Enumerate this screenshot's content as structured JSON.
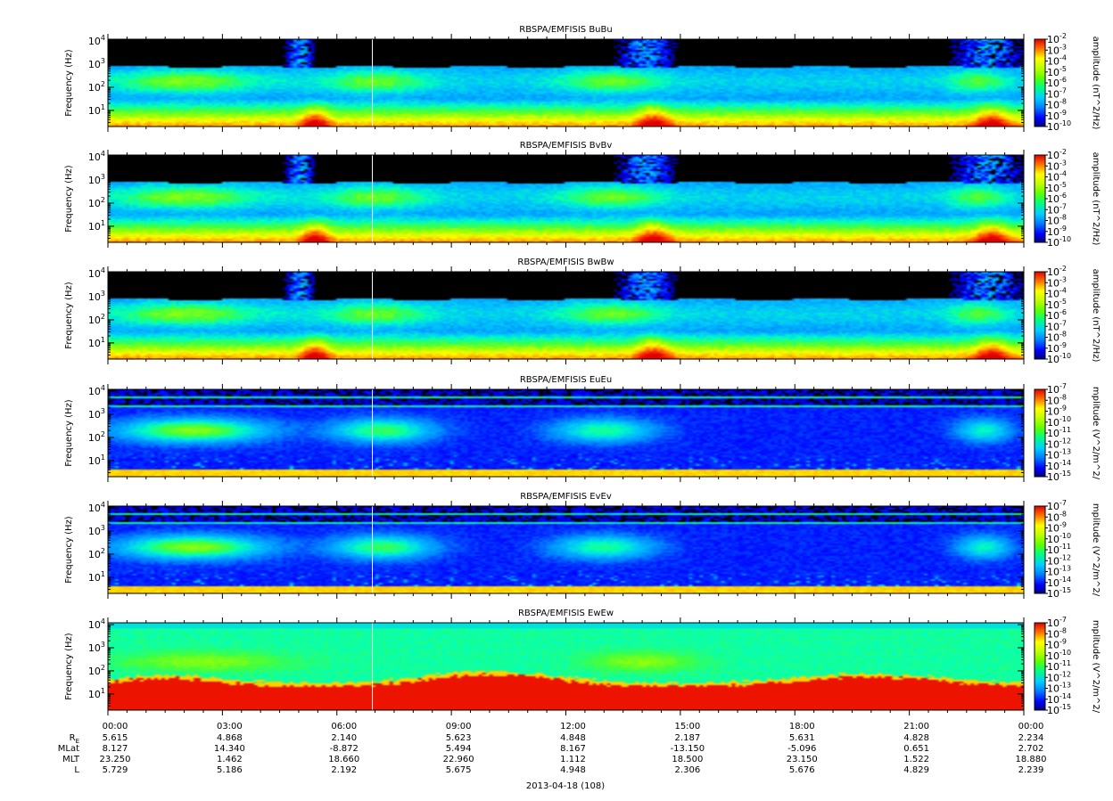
{
  "chart_data": [
    {
      "type": "heatmap",
      "title": "RBSPA/EMFISIS  BuBu",
      "ylabel": "Frequency (Hz)",
      "yscale": "log",
      "ylim": [
        2,
        12000
      ],
      "yticks": [
        {
          "label": "10",
          "sup": "1"
        },
        {
          "label": "10",
          "sup": "2"
        },
        {
          "label": "10",
          "sup": "3"
        },
        {
          "label": "10",
          "sup": "4"
        }
      ],
      "colorbar": {
        "label": "amplitude (nT^2/Hz)",
        "ticks": [
          {
            "label": "10",
            "sup": "-2"
          },
          {
            "label": "10",
            "sup": "-3"
          },
          {
            "label": "10",
            "sup": "-4"
          },
          {
            "label": "10",
            "sup": "-5"
          },
          {
            "label": "10",
            "sup": "-6"
          },
          {
            "label": "10",
            "sup": "-7"
          },
          {
            "label": "10",
            "sup": "-8"
          },
          {
            "label": "10",
            "sup": "-9"
          },
          {
            "label": "10",
            "sup": "-10"
          }
        ]
      },
      "variant": "b"
    },
    {
      "type": "heatmap",
      "title": "RBSPA/EMFISIS  BvBv",
      "ylabel": "Frequency (Hz)",
      "yscale": "log",
      "ylim": [
        2,
        12000
      ],
      "yticks": [
        {
          "label": "10",
          "sup": "1"
        },
        {
          "label": "10",
          "sup": "2"
        },
        {
          "label": "10",
          "sup": "3"
        },
        {
          "label": "10",
          "sup": "4"
        }
      ],
      "colorbar": {
        "label": "amplitude (nT^2/Hz)",
        "ticks": [
          {
            "label": "10",
            "sup": "-2"
          },
          {
            "label": "10",
            "sup": "-3"
          },
          {
            "label": "10",
            "sup": "-4"
          },
          {
            "label": "10",
            "sup": "-5"
          },
          {
            "label": "10",
            "sup": "-6"
          },
          {
            "label": "10",
            "sup": "-7"
          },
          {
            "label": "10",
            "sup": "-8"
          },
          {
            "label": "10",
            "sup": "-9"
          },
          {
            "label": "10",
            "sup": "-10"
          }
        ]
      },
      "variant": "b"
    },
    {
      "type": "heatmap",
      "title": "RBSPA/EMFISIS  BwBw",
      "ylabel": "Frequency (Hz)",
      "yscale": "log",
      "ylim": [
        2,
        12000
      ],
      "yticks": [
        {
          "label": "10",
          "sup": "1"
        },
        {
          "label": "10",
          "sup": "2"
        },
        {
          "label": "10",
          "sup": "3"
        },
        {
          "label": "10",
          "sup": "4"
        }
      ],
      "colorbar": {
        "label": "amplitude (nT^2/Hz)",
        "ticks": [
          {
            "label": "10",
            "sup": "-2"
          },
          {
            "label": "10",
            "sup": "-3"
          },
          {
            "label": "10",
            "sup": "-4"
          },
          {
            "label": "10",
            "sup": "-5"
          },
          {
            "label": "10",
            "sup": "-6"
          },
          {
            "label": "10",
            "sup": "-7"
          },
          {
            "label": "10",
            "sup": "-8"
          },
          {
            "label": "10",
            "sup": "-9"
          },
          {
            "label": "10",
            "sup": "-10"
          }
        ]
      },
      "variant": "b"
    },
    {
      "type": "heatmap",
      "title": "RBSPA/EMFISIS  EuEu",
      "ylabel": "Frequency (Hz)",
      "yscale": "log",
      "ylim": [
        2,
        12000
      ],
      "yticks": [
        {
          "label": "10",
          "sup": "1"
        },
        {
          "label": "10",
          "sup": "2"
        },
        {
          "label": "10",
          "sup": "3"
        },
        {
          "label": "10",
          "sup": "4"
        }
      ],
      "colorbar": {
        "label": "mplitude (V^2/m^2/",
        "ticks": [
          {
            "label": "10",
            "sup": "-7"
          },
          {
            "label": "10",
            "sup": "-8"
          },
          {
            "label": "10",
            "sup": "-9"
          },
          {
            "label": "10",
            "sup": "-10"
          },
          {
            "label": "10",
            "sup": "-11"
          },
          {
            "label": "10",
            "sup": "-12"
          },
          {
            "label": "10",
            "sup": "-13"
          },
          {
            "label": "10",
            "sup": "-14"
          },
          {
            "label": "10",
            "sup": "-15"
          }
        ]
      },
      "variant": "e"
    },
    {
      "type": "heatmap",
      "title": "RBSPA/EMFISIS  EvEv",
      "ylabel": "Frequency (Hz)",
      "yscale": "log",
      "ylim": [
        2,
        12000
      ],
      "yticks": [
        {
          "label": "10",
          "sup": "1"
        },
        {
          "label": "10",
          "sup": "2"
        },
        {
          "label": "10",
          "sup": "3"
        },
        {
          "label": "10",
          "sup": "4"
        }
      ],
      "colorbar": {
        "label": "mplitude (V^2/m^2/",
        "ticks": [
          {
            "label": "10",
            "sup": "-7"
          },
          {
            "label": "10",
            "sup": "-8"
          },
          {
            "label": "10",
            "sup": "-9"
          },
          {
            "label": "10",
            "sup": "-10"
          },
          {
            "label": "10",
            "sup": "-11"
          },
          {
            "label": "10",
            "sup": "-12"
          },
          {
            "label": "10",
            "sup": "-13"
          },
          {
            "label": "10",
            "sup": "-14"
          },
          {
            "label": "10",
            "sup": "-15"
          }
        ]
      },
      "variant": "e"
    },
    {
      "type": "heatmap",
      "title": "RBSPA/EMFISIS  EwEw",
      "ylabel": "Frequency (Hz)",
      "yscale": "log",
      "ylim": [
        2,
        12000
      ],
      "yticks": [
        {
          "label": "10",
          "sup": "1"
        },
        {
          "label": "10",
          "sup": "2"
        },
        {
          "label": "10",
          "sup": "3"
        },
        {
          "label": "10",
          "sup": "4"
        }
      ],
      "colorbar": {
        "label": "mplitude (V^2/m^2/",
        "ticks": [
          {
            "label": "10",
            "sup": "-7"
          },
          {
            "label": "10",
            "sup": "-8"
          },
          {
            "label": "10",
            "sup": "-9"
          },
          {
            "label": "10",
            "sup": "-10"
          },
          {
            "label": "10",
            "sup": "-11"
          },
          {
            "label": "10",
            "sup": "-12"
          },
          {
            "label": "10",
            "sup": "-13"
          },
          {
            "label": "10",
            "sup": "-14"
          },
          {
            "label": "10",
            "sup": "-15"
          }
        ]
      },
      "variant": "ew"
    }
  ],
  "time_axis": {
    "ticks": [
      "00:00",
      "03:00",
      "06:00",
      "09:00",
      "12:00",
      "15:00",
      "18:00",
      "21:00",
      "00:00"
    ],
    "date_label": "2013-04-18 (108)",
    "rows": [
      {
        "label": "R",
        "sub": "E",
        "values": [
          "5.615",
          "4.868",
          "2.140",
          "5.623",
          "4.848",
          "2.187",
          "5.631",
          "4.828",
          "2.234"
        ]
      },
      {
        "label": "MLat",
        "sub": "",
        "values": [
          "8.127",
          "14.340",
          "-8.872",
          "5.494",
          "8.167",
          "-13.150",
          "-5.096",
          "0.651",
          "2.702"
        ]
      },
      {
        "label": "MLT",
        "sub": "",
        "values": [
          "23.250",
          "1.462",
          "18.660",
          "22.960",
          "1.112",
          "18.500",
          "23.150",
          "1.522",
          "18.880"
        ]
      },
      {
        "label": "L",
        "sub": "",
        "values": [
          "5.729",
          "5.186",
          "2.192",
          "5.675",
          "4.948",
          "2.306",
          "5.676",
          "4.829",
          "2.239"
        ]
      }
    ]
  },
  "colors": {
    "background": "#000000",
    "colormap": [
      "#000080",
      "#0000ff",
      "#0080ff",
      "#00c0ff",
      "#00ffc0",
      "#40ff40",
      "#a0ff00",
      "#ffff00",
      "#ffa000",
      "#ff3000",
      "#e00000"
    ]
  }
}
